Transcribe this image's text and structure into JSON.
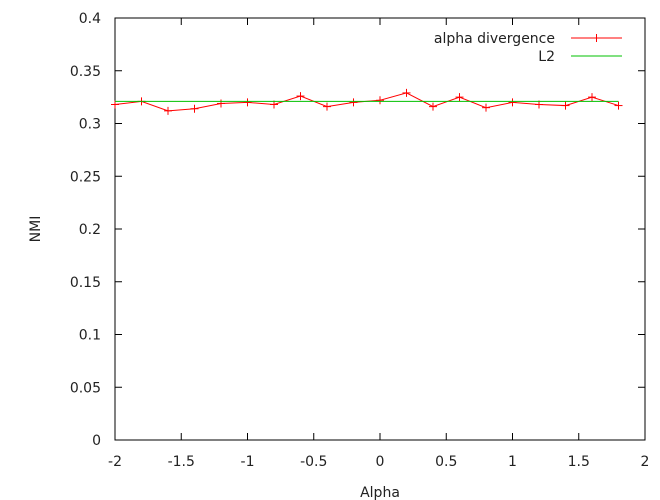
{
  "chart_data": {
    "type": "line",
    "title": "",
    "xlabel": "Alpha",
    "ylabel": "NMI",
    "xlim": [
      -2,
      2
    ],
    "ylim": [
      0,
      0.4
    ],
    "x_ticks": [
      "-2",
      "-1.5",
      "-1",
      "-0.5",
      "0",
      "0.5",
      "1",
      "1.5",
      "2"
    ],
    "y_ticks": [
      "0",
      "0.05",
      "0.1",
      "0.15",
      "0.2",
      "0.25",
      "0.3",
      "0.35",
      "0.4"
    ],
    "grid": false,
    "legend_position": "top-right",
    "series": [
      {
        "name": "alpha divergence",
        "color": "#ff0000",
        "marker": "plus",
        "x": [
          -2.0,
          -1.8,
          -1.6,
          -1.4,
          -1.2,
          -1.0,
          -0.8,
          -0.6,
          -0.4,
          -0.2,
          0.0,
          0.2,
          0.4,
          0.6,
          0.8,
          1.0,
          1.2,
          1.4,
          1.6,
          1.8
        ],
        "y": [
          0.318,
          0.321,
          0.312,
          0.314,
          0.319,
          0.32,
          0.318,
          0.326,
          0.316,
          0.32,
          0.322,
          0.329,
          0.316,
          0.325,
          0.315,
          0.32,
          0.318,
          0.317,
          0.325,
          0.317
        ]
      },
      {
        "name": "L2",
        "color": "#00c000",
        "marker": "none",
        "x": [
          -2.0,
          1.8
        ],
        "y": [
          0.321,
          0.321
        ]
      }
    ]
  }
}
